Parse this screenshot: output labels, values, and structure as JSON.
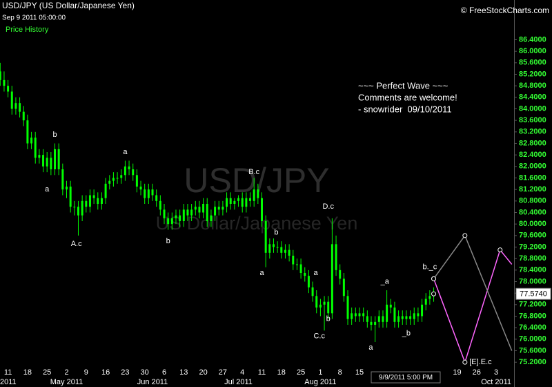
{
  "chart_data": {
    "type": "candlestick",
    "title": "USD/JPY (US Dollar/Japanese Yen)",
    "subtitle": "Sep 9 2011 05:00:00",
    "legend": "Price History",
    "credit": "© FreeStockCharts.com",
    "watermark": "USD/JPY",
    "watermark_subtitle": "US Dollar/Japanese Yen",
    "annotation_lines": [
      "~~~ Perfect Wave ~~~",
      "Comments are welcome!",
      "- snowrider  09/10/2011"
    ],
    "crosshair_date": "9/9/2011 5:00 PM",
    "color": "#00ff00",
    "categories": [
      null,
      null,
      "11",
      null,
      null,
      null,
      null,
      "18",
      null,
      null,
      null,
      null,
      "25",
      null,
      null,
      null,
      null,
      "2",
      null,
      null,
      null,
      null,
      "9",
      null,
      null,
      null,
      null,
      "16",
      null,
      null,
      null,
      null,
      "23",
      null,
      null,
      null,
      null,
      "30",
      null,
      null,
      null,
      null,
      "6",
      null,
      null,
      null,
      null,
      "13",
      null,
      null,
      null,
      null,
      "20",
      null,
      null,
      null,
      null,
      "27",
      null,
      null,
      null,
      null,
      "4",
      null,
      null,
      null,
      null,
      "11",
      null,
      null,
      null,
      null,
      "18",
      null,
      null,
      null,
      null,
      "25",
      null,
      null,
      null,
      null,
      "1",
      null,
      null,
      null,
      null,
      "8",
      null,
      null,
      null,
      null,
      "15",
      null,
      null,
      null,
      null,
      null,
      null,
      null,
      null,
      null,
      null,
      null,
      null,
      null,
      null,
      null,
      null,
      null,
      null,
      null,
      null,
      null,
      null,
      null,
      null,
      "19",
      null,
      null,
      null,
      null,
      "26",
      null,
      null,
      null,
      null,
      "3",
      null,
      null,
      null,
      null
    ],
    "month_labels": [
      {
        "value": 0,
        "label": "2011"
      },
      {
        "value": 17,
        "label": "May 2011"
      },
      {
        "value": 39,
        "label": "Jun 2011"
      },
      {
        "value": 61,
        "label": "Jul 2011"
      },
      {
        "value": 82,
        "label": "Aug 2011"
      },
      {
        "value": 127,
        "label": "Oct 2011"
      }
    ],
    "open": [
      85.3,
      85.0,
      84.8,
      84.6,
      84.0,
      84.2,
      83.9,
      83.6,
      82.8,
      83.0,
      82.3,
      82.4,
      82.0,
      82.3,
      81.9,
      82.6,
      81.9,
      81.2,
      81.3,
      80.6,
      80.6,
      80.3,
      80.8,
      80.6,
      81.0,
      80.9,
      80.7,
      80.9,
      81.4,
      81.5,
      81.6,
      81.6,
      81.7,
      82.0,
      81.9,
      81.7,
      81.3,
      81.2,
      80.9,
      81.2,
      81.0,
      80.8,
      80.5,
      80.2,
      80.0,
      80.2,
      80.3,
      80.1,
      80.5,
      80.3,
      80.5,
      80.6,
      80.4,
      80.7,
      80.1,
      80.3,
      80.6,
      80.5,
      80.6,
      80.9,
      80.7,
      80.8,
      80.9,
      80.6,
      80.9,
      80.8,
      81.2,
      80.9,
      80.1,
      79.0,
      79.3,
      79.2,
      79.2,
      79.0,
      79.1,
      78.9,
      78.6,
      78.6,
      78.3,
      78.2,
      77.8,
      77.5,
      77.1,
      77.2,
      77.3,
      76.9,
      79.3,
      78.4,
      78.1,
      77.5,
      76.7,
      76.9,
      76.8,
      76.9,
      76.8,
      76.6,
      76.5,
      76.6,
      76.8,
      76.6,
      77.2,
      77.1,
      76.6,
      76.8,
      76.7,
      76.8,
      76.7,
      76.9,
      76.8,
      77.2,
      77.4,
      77.5,
      null,
      null,
      null,
      null,
      null,
      null,
      null,
      null,
      null,
      null,
      null,
      null,
      null,
      null,
      null,
      null,
      null,
      null,
      null,
      null
    ],
    "high": [
      85.6,
      85.3,
      85.0,
      84.8,
      84.4,
      84.4,
      84.1,
      83.8,
      83.2,
      83.2,
      82.6,
      82.6,
      82.5,
      82.5,
      82.8,
      82.8,
      82.1,
      81.5,
      81.5,
      80.8,
      80.8,
      81.0,
      81.0,
      81.2,
      81.2,
      81.1,
      81.1,
      81.6,
      81.7,
      81.8,
      81.8,
      81.9,
      82.2,
      82.2,
      82.1,
      81.9,
      81.5,
      81.4,
      81.4,
      81.4,
      81.2,
      81.0,
      80.7,
      80.4,
      80.4,
      80.5,
      80.5,
      80.7,
      80.7,
      80.7,
      80.8,
      80.8,
      80.9,
      80.9,
      80.5,
      80.8,
      80.8,
      80.8,
      81.1,
      81.1,
      80.9,
      81.0,
      81.1,
      81.1,
      81.1,
      81.6,
      81.4,
      81.1,
      80.3,
      79.5,
      79.5,
      79.4,
      79.4,
      79.3,
      79.3,
      79.1,
      78.8,
      78.8,
      78.5,
      78.4,
      78.0,
      77.7,
      77.4,
      77.5,
      77.5,
      80.2,
      79.6,
      78.6,
      78.3,
      77.7,
      77.1,
      77.1,
      77.1,
      77.1,
      77.0,
      76.8,
      76.8,
      77.0,
      77.0,
      77.7,
      77.4,
      77.3,
      77.0,
      77.0,
      77.0,
      77.0,
      77.1,
      77.1,
      77.4,
      77.6,
      77.7,
      77.8,
      null,
      null,
      null,
      null,
      null,
      null,
      null,
      null,
      null,
      null,
      null,
      null,
      null,
      null,
      null,
      null,
      null,
      null,
      null,
      null
    ],
    "low": [
      84.8,
      84.6,
      84.4,
      83.8,
      83.8,
      83.7,
      83.4,
      82.6,
      82.6,
      82.1,
      82.1,
      81.8,
      81.8,
      81.7,
      81.7,
      81.7,
      81.0,
      80.9,
      80.4,
      80.3,
      79.6,
      80.1,
      80.4,
      80.4,
      80.7,
      80.5,
      80.5,
      80.7,
      81.2,
      81.3,
      81.4,
      81.4,
      81.5,
      81.7,
      81.5,
      81.1,
      81.0,
      80.7,
      80.7,
      80.8,
      80.6,
      80.3,
      80.0,
      79.8,
      79.8,
      80.0,
      79.9,
      79.9,
      80.1,
      80.1,
      80.3,
      80.2,
      80.2,
      79.9,
      79.9,
      80.1,
      80.3,
      80.3,
      80.4,
      80.5,
      80.5,
      80.6,
      80.4,
      80.4,
      80.6,
      80.6,
      80.7,
      79.9,
      78.5,
      78.8,
      79.0,
      79.0,
      78.8,
      78.8,
      78.7,
      78.4,
      78.4,
      78.1,
      78.0,
      77.6,
      77.3,
      76.9,
      76.8,
      76.3,
      76.7,
      76.7,
      78.2,
      77.9,
      77.3,
      76.5,
      76.5,
      76.6,
      76.6,
      76.6,
      76.4,
      76.3,
      75.9,
      76.4,
      76.4,
      76.4,
      76.9,
      76.4,
      76.4,
      76.5,
      76.5,
      76.5,
      76.5,
      76.6,
      76.6,
      77.0,
      77.2,
      77.3,
      null,
      null,
      null,
      null,
      null,
      null,
      null,
      null,
      null,
      null,
      null,
      null,
      null,
      null,
      null,
      null,
      null,
      null,
      null,
      null
    ],
    "close": [
      85.0,
      84.8,
      84.6,
      84.0,
      84.2,
      83.9,
      83.6,
      82.8,
      83.0,
      82.3,
      82.4,
      82.0,
      82.3,
      81.9,
      82.6,
      81.9,
      81.2,
      81.3,
      80.6,
      80.6,
      80.3,
      80.8,
      80.6,
      81.0,
      80.9,
      80.7,
      80.9,
      81.4,
      81.5,
      81.6,
      81.6,
      81.7,
      82.0,
      81.9,
      81.7,
      81.3,
      81.2,
      80.9,
      81.2,
      81.0,
      80.8,
      80.5,
      80.2,
      80.0,
      80.2,
      80.3,
      80.1,
      80.5,
      80.3,
      80.5,
      80.6,
      80.4,
      80.7,
      80.1,
      80.3,
      80.6,
      80.5,
      80.6,
      80.9,
      80.7,
      80.8,
      80.9,
      80.6,
      80.9,
      80.8,
      81.2,
      80.9,
      80.1,
      79.0,
      79.3,
      79.2,
      79.2,
      79.0,
      79.1,
      78.9,
      78.6,
      78.6,
      78.3,
      78.2,
      77.8,
      77.5,
      77.1,
      77.2,
      77.3,
      76.9,
      79.3,
      78.4,
      78.1,
      77.5,
      76.7,
      76.9,
      76.8,
      76.9,
      76.8,
      76.6,
      76.5,
      76.6,
      76.8,
      76.6,
      77.2,
      77.1,
      76.6,
      76.8,
      76.7,
      76.8,
      76.7,
      76.9,
      76.8,
      77.2,
      77.4,
      77.5,
      77.574,
      null,
      null,
      null,
      null,
      null,
      null,
      null,
      null,
      null,
      null,
      null,
      null,
      null,
      null,
      null,
      null,
      null,
      null,
      null,
      null
    ],
    "last_price": {
      "value": 77.574,
      "label": "77.5740"
    },
    "projections": [
      {
        "color": "#ff66ff",
        "x": [
          111,
          119,
          128,
          131
        ],
        "y": [
          78.1,
          75.2,
          79.1,
          78.6
        ]
      },
      {
        "color": "#888888",
        "x": [
          111,
          119,
          131
        ],
        "y": [
          78.1,
          79.6,
          75.6
        ]
      }
    ],
    "wave_labels": [
      {
        "text": "b",
        "x": 14,
        "y": 83.1
      },
      {
        "text": "a",
        "x": 12,
        "y": 81.2
      },
      {
        "text": "A.c",
        "x": 19.5,
        "y": 79.3
      },
      {
        "text": "a",
        "x": 32,
        "y": 82.5
      },
      {
        "text": "b",
        "x": 43,
        "y": 79.4
      },
      {
        "text": "B.c",
        "x": 65,
        "y": 81.8
      },
      {
        "text": "a",
        "x": 67,
        "y": 78.3
      },
      {
        "text": "b",
        "x": 70.7,
        "y": 79.7
      },
      {
        "text": "a",
        "x": 80.8,
        "y": 78.3
      },
      {
        "text": "D.c",
        "x": 84,
        "y": 80.6
      },
      {
        "text": "C.c",
        "x": 81.7,
        "y": 76.1
      },
      {
        "text": "b",
        "x": 84,
        "y": 76.7
      },
      {
        "text": "a",
        "x": 94.9,
        "y": 75.7
      },
      {
        "text": "_a",
        "x": 98.5,
        "y": 78.0
      },
      {
        "text": "_b",
        "x": 104,
        "y": 76.2
      },
      {
        "text": "b._c",
        "x": 110,
        "y": 78.5
      },
      {
        "text": "[E].E.c",
        "x": 123,
        "y": 75.2
      }
    ],
    "ylim": [
      74.7,
      87.3
    ],
    "yticks": [
      {
        "value": 75.2,
        "label": "75.2000"
      },
      {
        "value": 75.6,
        "label": "75.6000"
      },
      {
        "value": 76.0,
        "label": "76.0000"
      },
      {
        "value": 76.4,
        "label": "76.4000"
      },
      {
        "value": 76.8,
        "label": "76.8000"
      },
      {
        "value": 77.2,
        "label": "77.2000"
      },
      {
        "value": 77.6,
        "label": "77.6000"
      },
      {
        "value": 78.0,
        "label": "78.0000"
      },
      {
        "value": 78.4,
        "label": "78.4000"
      },
      {
        "value": 78.8,
        "label": "78.8000"
      },
      {
        "value": 79.2,
        "label": "79.2000"
      },
      {
        "value": 79.6,
        "label": "79.6000"
      },
      {
        "value": 80.0,
        "label": "80.0000"
      },
      {
        "value": 80.4,
        "label": "80.4000"
      },
      {
        "value": 80.8,
        "label": "80.8000"
      },
      {
        "value": 81.2,
        "label": "81.2000"
      },
      {
        "value": 81.6,
        "label": "81.6000"
      },
      {
        "value": 82.0,
        "label": "82.0000"
      },
      {
        "value": 82.4,
        "label": "82.4000"
      },
      {
        "value": 82.8,
        "label": "82.8000"
      },
      {
        "value": 83.2,
        "label": "83.2000"
      },
      {
        "value": 83.6,
        "label": "83.6000"
      },
      {
        "value": 84.0,
        "label": "84.0000"
      },
      {
        "value": 84.4,
        "label": "84.4000"
      },
      {
        "value": 84.8,
        "label": "84.8000"
      },
      {
        "value": 85.2,
        "label": "85.2000"
      },
      {
        "value": 85.6,
        "label": "85.6000"
      },
      {
        "value": 86.0,
        "label": "86.0000"
      },
      {
        "value": 86.4,
        "label": "86.4000"
      }
    ]
  }
}
